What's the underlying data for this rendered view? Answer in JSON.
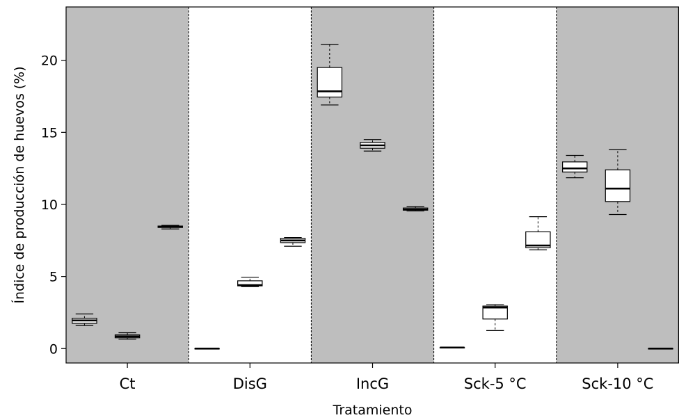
{
  "chart_data": {
    "type": "box",
    "xlabel": "Tratamiento",
    "ylabel": "Índice de producción de huevos (%)",
    "ylim": [
      -1,
      23.7
    ],
    "yticks": [
      0,
      5,
      10,
      15,
      20
    ],
    "grid": false,
    "categories": [
      "Ct",
      "DisG",
      "IncG",
      "Sck-5 °C",
      "Sck-10 °C"
    ],
    "panel_colors": [
      "#bebebe",
      "#ffffff",
      "#bebebe",
      "#ffffff",
      "#bebebe"
    ],
    "groups": [
      {
        "category": "Ct",
        "boxes": [
          {
            "whisker_low": 1.6,
            "q1": 1.75,
            "median": 1.95,
            "q3": 2.1,
            "whisker_high": 2.4
          },
          {
            "whisker_low": 0.65,
            "q1": 0.75,
            "median": 0.85,
            "q3": 0.95,
            "whisker_high": 1.1
          },
          {
            "whisker_low": 8.3,
            "q1": 8.4,
            "median": 8.45,
            "q3": 8.5,
            "whisker_high": 8.55
          }
        ]
      },
      {
        "category": "DisG",
        "boxes": [
          {
            "whisker_low": 0.0,
            "q1": 0.0,
            "median": 0.0,
            "q3": 0.0,
            "whisker_high": 0.0
          },
          {
            "whisker_low": 4.3,
            "q1": 4.35,
            "median": 4.4,
            "q3": 4.7,
            "whisker_high": 4.95
          },
          {
            "whisker_low": 7.1,
            "q1": 7.35,
            "median": 7.5,
            "q3": 7.65,
            "whisker_high": 7.7
          }
        ]
      },
      {
        "category": "IncG",
        "boxes": [
          {
            "whisker_low": 16.9,
            "q1": 17.45,
            "median": 17.85,
            "q3": 19.5,
            "whisker_high": 21.1
          },
          {
            "whisker_low": 13.7,
            "q1": 13.9,
            "median": 14.1,
            "q3": 14.3,
            "whisker_high": 14.5
          },
          {
            "whisker_low": 9.55,
            "q1": 9.6,
            "median": 9.65,
            "q3": 9.75,
            "whisker_high": 9.85
          }
        ]
      },
      {
        "category": "Sck-5 °C",
        "boxes": [
          {
            "whisker_low": 0.07,
            "q1": 0.07,
            "median": 0.07,
            "q3": 0.07,
            "whisker_high": 0.07
          },
          {
            "whisker_low": 1.25,
            "q1": 2.05,
            "median": 2.85,
            "q3": 2.95,
            "whisker_high": 3.05
          },
          {
            "whisker_low": 6.85,
            "q1": 7.0,
            "median": 7.15,
            "q3": 8.1,
            "whisker_high": 9.15
          }
        ]
      },
      {
        "category": "Sck-10 °C",
        "boxes": [
          {
            "whisker_low": 11.85,
            "q1": 12.25,
            "median": 12.5,
            "q3": 12.95,
            "whisker_high": 13.4
          },
          {
            "whisker_low": 9.3,
            "q1": 10.2,
            "median": 11.1,
            "q3": 12.4,
            "whisker_high": 13.8
          },
          {
            "whisker_low": 0.0,
            "q1": 0.0,
            "median": 0.0,
            "q3": 0.0,
            "whisker_high": 0.0
          }
        ]
      }
    ]
  }
}
